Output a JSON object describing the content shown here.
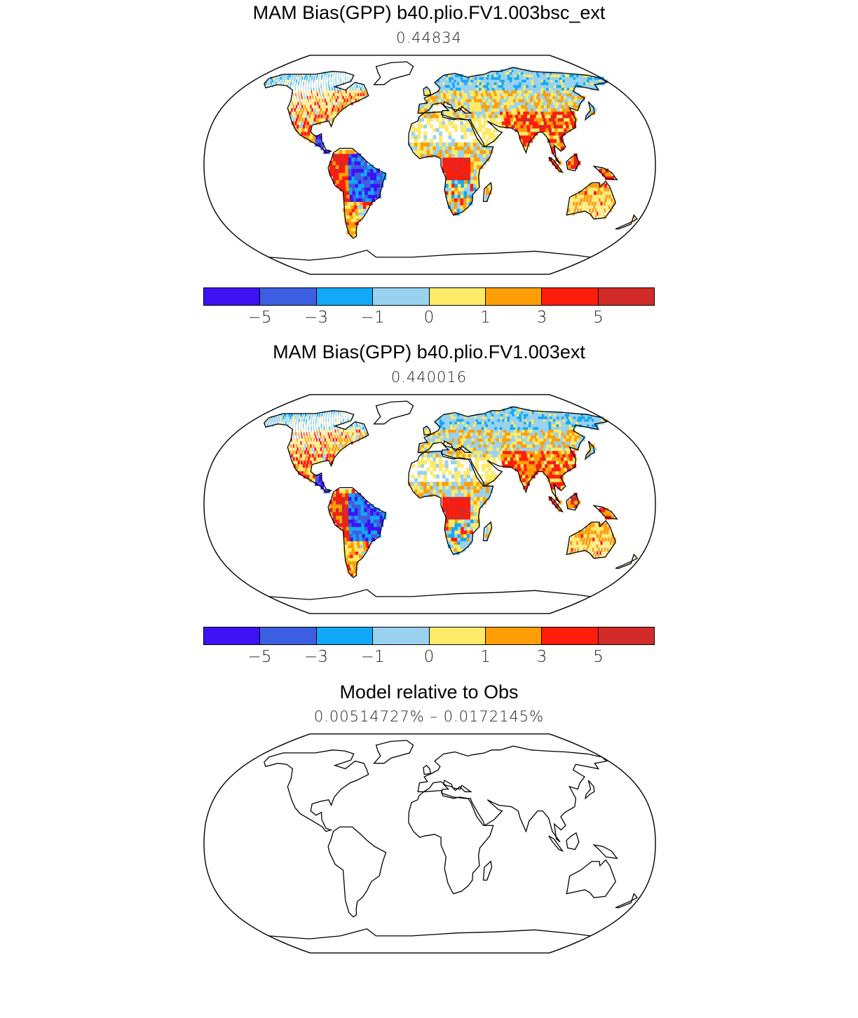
{
  "panels": [
    {
      "title": "MAM Bias(GPP) b40.plio.FV1.003bsc_ext",
      "subtitle": "0.44834",
      "colorbar": true,
      "field": "a"
    },
    {
      "title": "MAM Bias(GPP) b40.plio.FV1.003ext",
      "subtitle": "0.440016",
      "colorbar": true,
      "field": "b"
    },
    {
      "title": "Model relative to Obs",
      "subtitle": "0.00514727% – 0.0172145%",
      "colorbar": false,
      "field": "none"
    }
  ],
  "colorbar": {
    "colors": [
      "#3d12f5",
      "#3c5ee0",
      "#12a8f8",
      "#99d2ee",
      "#fdea68",
      "#ff9e07",
      "#ff1d0c",
      "#d22b29"
    ],
    "tick_labels": [
      "−5",
      "−3",
      "−1",
      "0",
      "1",
      "3",
      "5"
    ]
  }
}
